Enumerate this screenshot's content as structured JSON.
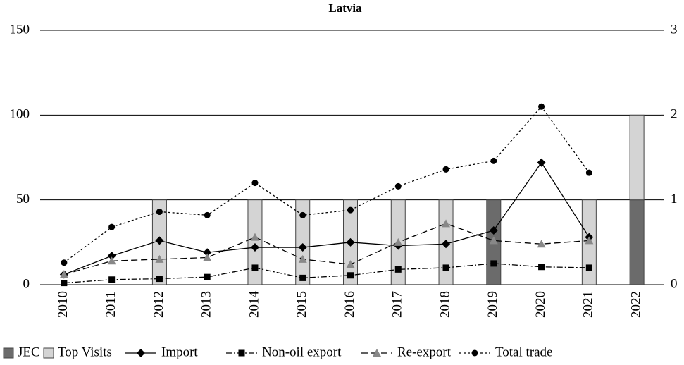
{
  "chart_data": {
    "type": "bar-line",
    "title": "Latvia",
    "categories": [
      "2010",
      "2011",
      "2012",
      "2013",
      "2014",
      "2015",
      "2016",
      "2017",
      "2018",
      "2019",
      "2020",
      "2021",
      "2022"
    ],
    "series": [
      {
        "name": "JEC",
        "type": "bar",
        "axis": "y2",
        "color": "#6b6b6b",
        "values": [
          0,
          0,
          0,
          0,
          0,
          0,
          0,
          0,
          0,
          1,
          0,
          0,
          1
        ]
      },
      {
        "name": "Top Visits",
        "type": "bar",
        "axis": "y2",
        "color": "#d4d4d4",
        "values": [
          0,
          0,
          1,
          0,
          1,
          1,
          1,
          1,
          1,
          0,
          0,
          1,
          1
        ]
      },
      {
        "name": "Import",
        "type": "line",
        "color": "#000000",
        "marker": "diamond",
        "dash": "solid",
        "values": [
          6,
          17,
          26,
          19,
          22,
          22,
          25,
          23,
          24,
          32,
          72,
          28,
          null
        ]
      },
      {
        "name": "Non-oil export",
        "type": "line",
        "color": "#000000",
        "marker": "square",
        "dash": "dashdot",
        "values": [
          1,
          3,
          3.5,
          4.5,
          10,
          4,
          5.5,
          9,
          10,
          12.5,
          10.5,
          10,
          null
        ]
      },
      {
        "name": "Re-export",
        "type": "line",
        "color": "#888888",
        "marker": "triangle",
        "dash": "dashed",
        "values": [
          6,
          14,
          15,
          16,
          28,
          15,
          12,
          25,
          36,
          26,
          24,
          26,
          null
        ]
      },
      {
        "name": "Total trade",
        "type": "line",
        "color": "#000000",
        "marker": "circle",
        "dash": "dotted",
        "values": [
          13,
          34,
          43,
          41,
          60,
          41,
          44,
          58,
          68,
          73,
          105,
          66,
          null
        ]
      }
    ],
    "stacked": true,
    "ylim": [
      0,
      150
    ],
    "yticks": [
      0,
      50,
      100,
      150
    ],
    "y2lim": [
      0,
      3
    ],
    "y2ticks": [
      0,
      1,
      2,
      3
    ],
    "grid": true,
    "legend": "bottom"
  }
}
